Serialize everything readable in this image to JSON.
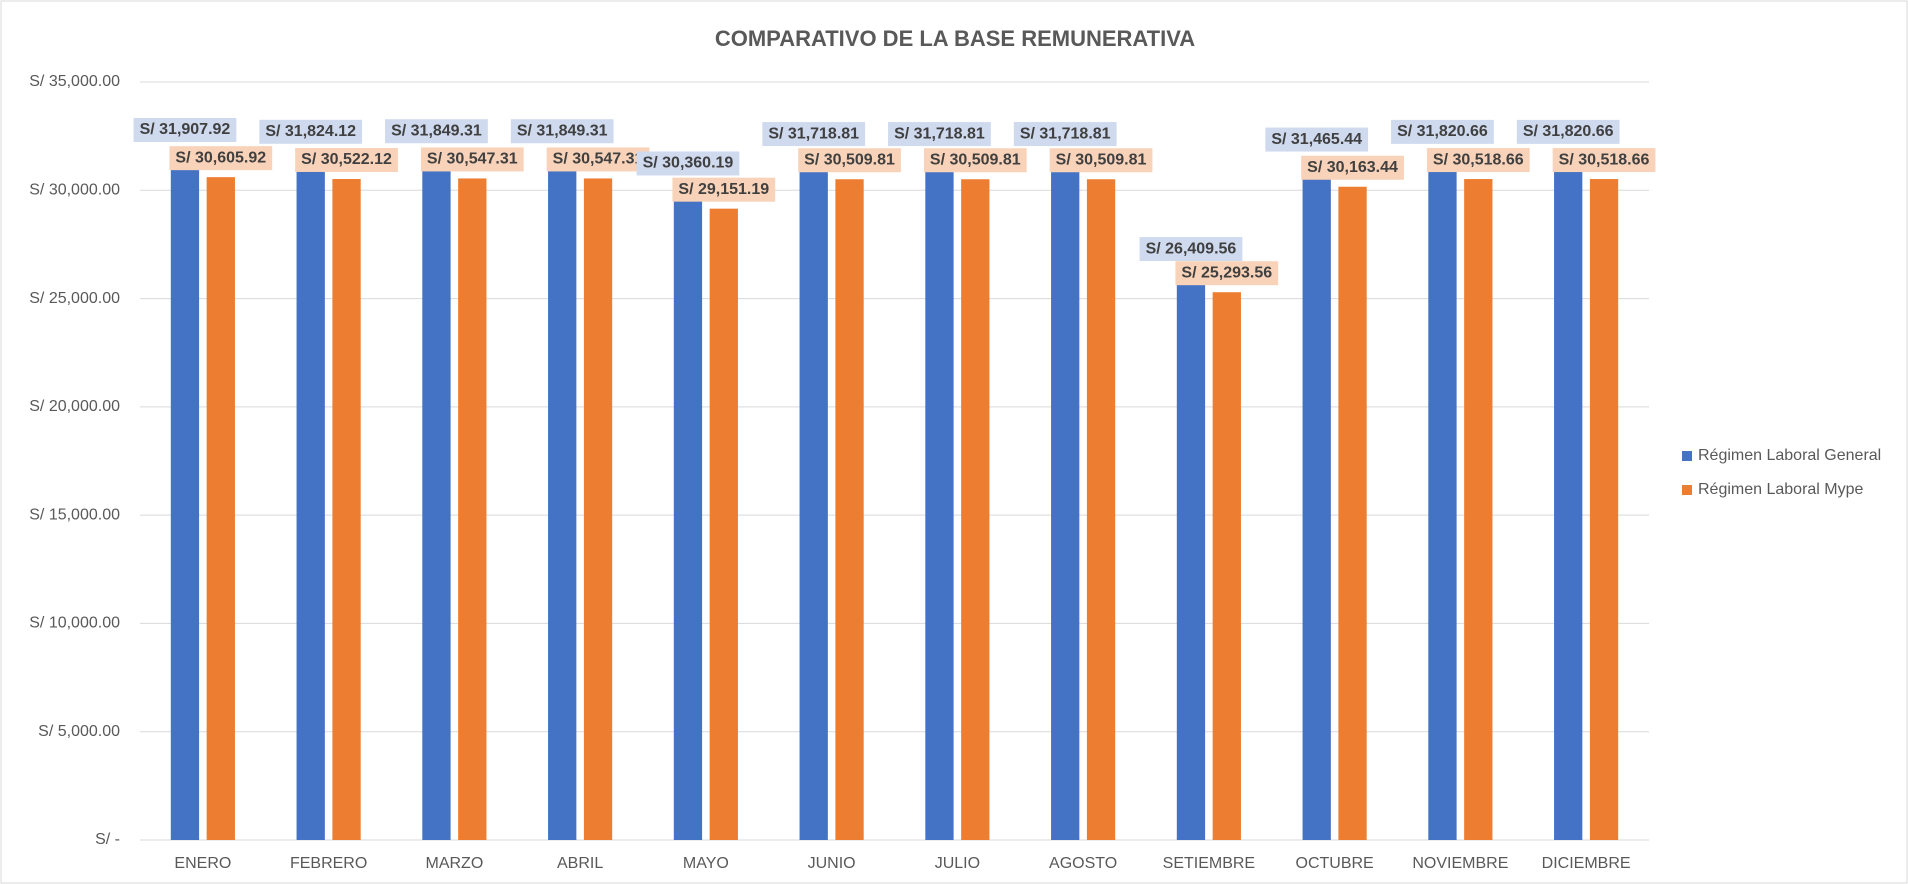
{
  "chart_data": {
    "type": "bar",
    "title": "COMPARATIVO DE LA BASE REMUNERATIVA",
    "categories": [
      "ENERO",
      "FEBRERO",
      "MARZO",
      "ABRIL",
      "MAYO",
      "JUNIO",
      "JULIO",
      "AGOSTO",
      "SETIEMBRE",
      "OCTUBRE",
      "NOVIEMBRE",
      "DICIEMBRE"
    ],
    "series": [
      {
        "name": "Régimen Laboral General",
        "color": "#4472c4",
        "label_bg": "#cfdaef",
        "values": [
          31907.92,
          31824.12,
          31849.31,
          31849.31,
          30360.19,
          31718.81,
          31718.81,
          31718.81,
          26409.56,
          31465.44,
          31820.66,
          31820.66
        ],
        "value_labels": [
          "S/ 31,907.92",
          "S/ 31,824.12",
          "S/ 31,849.31",
          "S/ 31,849.31",
          "S/ 30,360.19",
          "S/ 31,718.81",
          "S/ 31,718.81",
          "S/ 31,718.81",
          "S/ 26,409.56",
          "S/ 31,465.44",
          "S/ 31,820.66",
          "S/ 31,820.66"
        ]
      },
      {
        "name": "Régimen Laboral Mype",
        "color": "#ed7d31",
        "label_bg": "#f9d3b9",
        "values": [
          30605.92,
          30522.12,
          30547.31,
          30547.31,
          29151.19,
          30509.81,
          30509.81,
          30509.81,
          25293.56,
          30163.44,
          30518.66,
          30518.66
        ],
        "value_labels": [
          "S/ 30,605.92",
          "S/ 30,522.12",
          "S/ 30,547.31",
          "S/ 30,547.31",
          "S/ 29,151.19",
          "S/ 30,509.81",
          "S/ 30,509.81",
          "S/ 30,509.81",
          "S/ 25,293.56",
          "S/ 30,163.44",
          "S/ 30,518.66",
          "S/ 30,518.66"
        ]
      }
    ],
    "ylim": [
      0,
      35000
    ],
    "yticks": [
      {
        "value": 0,
        "label": "S/ -"
      },
      {
        "value": 5000,
        "label": "S/ 5,000.00"
      },
      {
        "value": 10000,
        "label": "S/ 10,000.00"
      },
      {
        "value": 15000,
        "label": "S/ 15,000.00"
      },
      {
        "value": 20000,
        "label": "S/ 20,000.00"
      },
      {
        "value": 25000,
        "label": "S/ 25,000.00"
      },
      {
        "value": 30000,
        "label": "S/ 30,000.00"
      },
      {
        "value": 35000,
        "label": "S/ 35,000.00"
      }
    ],
    "grid": true,
    "legend": "right"
  }
}
